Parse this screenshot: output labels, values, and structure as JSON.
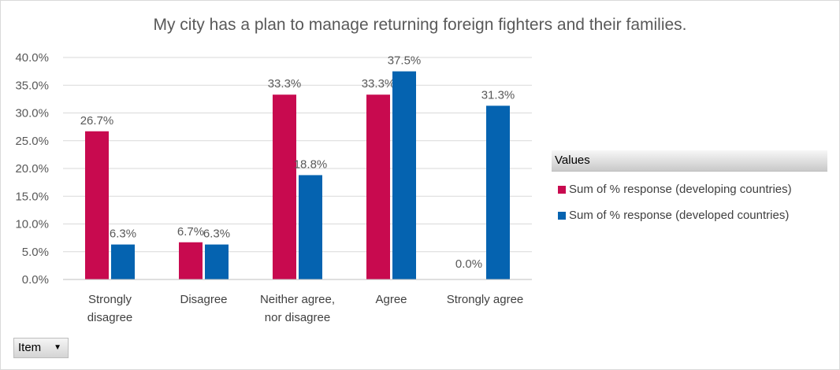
{
  "chart_data": {
    "type": "bar",
    "title": "My city has a plan to manage returning foreign fighters and their families.",
    "categories": [
      [
        "Strongly",
        "disagree"
      ],
      [
        "Disagree"
      ],
      [
        "Neither agree,",
        "nor disagree"
      ],
      [
        "Agree"
      ],
      [
        "Strongly agree"
      ]
    ],
    "series": [
      {
        "name": "Sum of % response (developing countries)",
        "color": "#c80a4f",
        "values": [
          26.7,
          6.7,
          33.3,
          33.3,
          0.0
        ],
        "labels": [
          "26.7%",
          "6.7%",
          "33.3%",
          "33.3%",
          ""
        ]
      },
      {
        "name": "Sum of % response (developed countries)",
        "color": "#0563b0",
        "values": [
          6.3,
          6.3,
          18.8,
          37.5,
          31.3
        ],
        "labels": [
          "6.3%",
          "6.3%",
          "18.8%",
          "37.5%",
          "31.3%"
        ]
      }
    ],
    "extra_labels": [
      {
        "category": 4,
        "series": 0,
        "text": "0.0%"
      }
    ],
    "ylim": [
      0,
      40
    ],
    "yticks": [
      {
        "value": 0,
        "label": "0.0%"
      },
      {
        "value": 5,
        "label": "5.0%"
      },
      {
        "value": 10,
        "label": "10.0%"
      },
      {
        "value": 15,
        "label": "15.0%"
      },
      {
        "value": 20,
        "label": "20.0%"
      },
      {
        "value": 25,
        "label": "25.0%"
      },
      {
        "value": 30,
        "label": "30.0%"
      },
      {
        "value": 35,
        "label": "35.0%"
      },
      {
        "value": 40,
        "label": "40.0%"
      }
    ],
    "grid": true,
    "legend": {
      "title": "Values",
      "position": "right"
    }
  },
  "field_button": {
    "label": "Item",
    "arrow": "▼"
  }
}
